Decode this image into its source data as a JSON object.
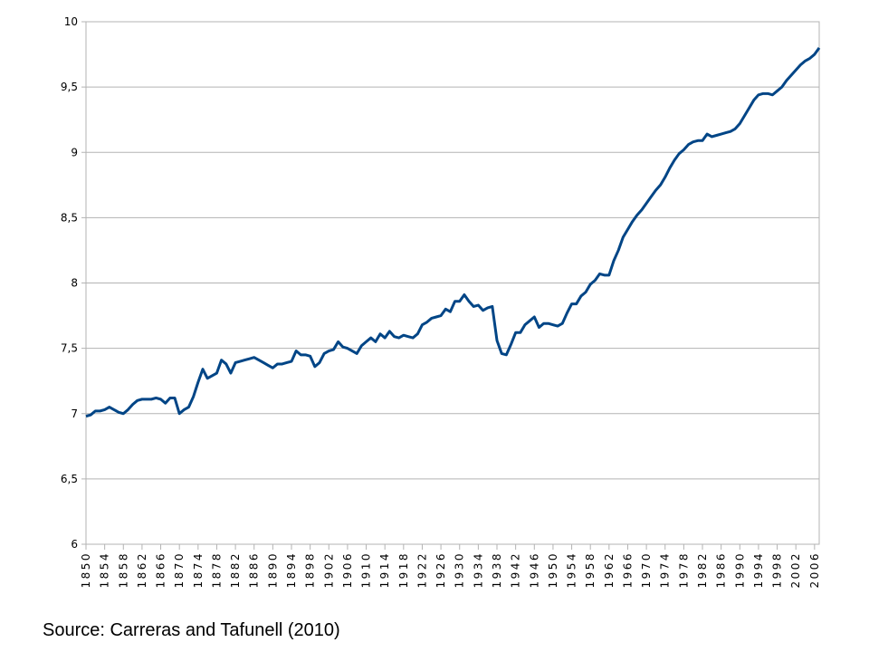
{
  "chart_data": {
    "type": "line",
    "annotation": "Source: Carreras and Tafunell (2010)",
    "x": [
      1850,
      1851,
      1852,
      1853,
      1854,
      1855,
      1856,
      1857,
      1858,
      1859,
      1860,
      1861,
      1862,
      1863,
      1864,
      1865,
      1866,
      1867,
      1868,
      1869,
      1870,
      1871,
      1872,
      1873,
      1874,
      1875,
      1876,
      1877,
      1878,
      1879,
      1880,
      1881,
      1882,
      1883,
      1884,
      1885,
      1886,
      1887,
      1888,
      1889,
      1890,
      1891,
      1892,
      1893,
      1894,
      1895,
      1896,
      1897,
      1898,
      1899,
      1900,
      1901,
      1902,
      1903,
      1904,
      1905,
      1906,
      1907,
      1908,
      1909,
      1910,
      1911,
      1912,
      1913,
      1914,
      1915,
      1916,
      1917,
      1918,
      1919,
      1920,
      1921,
      1922,
      1923,
      1924,
      1925,
      1926,
      1927,
      1928,
      1929,
      1930,
      1931,
      1932,
      1933,
      1934,
      1935,
      1936,
      1937,
      1938,
      1939,
      1940,
      1941,
      1942,
      1943,
      1944,
      1945,
      1946,
      1947,
      1948,
      1949,
      1950,
      1951,
      1952,
      1953,
      1954,
      1955,
      1956,
      1957,
      1958,
      1959,
      1960,
      1961,
      1962,
      1963,
      1964,
      1965,
      1966,
      1967,
      1968,
      1969,
      1970,
      1971,
      1972,
      1973,
      1974,
      1975,
      1976,
      1977,
      1978,
      1979,
      1980,
      1981,
      1982,
      1983,
      1984,
      1985,
      1986,
      1987,
      1988,
      1989,
      1990,
      1991,
      1992,
      1993,
      1994,
      1995,
      1996,
      1997,
      1998,
      1999,
      2000,
      2001,
      2002,
      2003,
      2004,
      2005,
      2006,
      2007
    ],
    "series": [
      {
        "color": "#004586",
        "values": [
          6.98,
          6.99,
          7.02,
          7.02,
          7.03,
          7.05,
          7.03,
          7.01,
          7.0,
          7.03,
          7.07,
          7.1,
          7.11,
          7.11,
          7.11,
          7.12,
          7.11,
          7.08,
          7.12,
          7.12,
          7.0,
          7.03,
          7.05,
          7.13,
          7.24,
          7.34,
          7.27,
          7.29,
          7.31,
          7.41,
          7.38,
          7.31,
          7.39,
          7.4,
          7.41,
          7.42,
          7.43,
          7.41,
          7.39,
          7.37,
          7.35,
          7.38,
          7.38,
          7.39,
          7.4,
          7.48,
          7.45,
          7.45,
          7.44,
          7.36,
          7.39,
          7.46,
          7.48,
          7.49,
          7.55,
          7.51,
          7.5,
          7.48,
          7.46,
          7.52,
          7.55,
          7.58,
          7.55,
          7.61,
          7.58,
          7.63,
          7.59,
          7.58,
          7.6,
          7.59,
          7.58,
          7.61,
          7.68,
          7.7,
          7.73,
          7.74,
          7.75,
          7.8,
          7.78,
          7.86,
          7.86,
          7.91,
          7.86,
          7.82,
          7.83,
          7.79,
          7.81,
          7.82,
          7.56,
          7.46,
          7.45,
          7.53,
          7.62,
          7.62,
          7.68,
          7.71,
          7.74,
          7.66,
          7.69,
          7.69,
          7.68,
          7.67,
          7.69,
          7.77,
          7.84,
          7.84,
          7.9,
          7.93,
          7.99,
          8.02,
          8.07,
          8.06,
          8.06,
          8.17,
          8.25,
          8.35,
          8.41,
          8.47,
          8.52,
          8.56,
          8.61,
          8.66,
          8.71,
          8.75,
          8.81,
          8.88,
          8.94,
          8.99,
          9.02,
          9.06,
          9.08,
          9.09,
          9.09,
          9.14,
          9.12,
          9.13,
          9.14,
          9.15,
          9.16,
          9.18,
          9.22,
          9.28,
          9.34,
          9.4,
          9.44,
          9.45,
          9.45,
          9.44,
          9.47,
          9.5,
          9.55,
          9.59,
          9.63,
          9.67,
          9.7,
          9.72,
          9.75,
          9.8
        ]
      }
    ],
    "xlim": [
      1850,
      2007
    ],
    "xticks": [
      1850,
      1854,
      1858,
      1862,
      1866,
      1870,
      1874,
      1878,
      1882,
      1886,
      1890,
      1894,
      1898,
      1902,
      1906,
      1910,
      1914,
      1918,
      1922,
      1926,
      1930,
      1934,
      1938,
      1942,
      1946,
      1950,
      1954,
      1958,
      1962,
      1966,
      1970,
      1974,
      1978,
      1982,
      1986,
      1990,
      1994,
      1998,
      2002,
      2006
    ],
    "ylim": [
      6,
      10
    ],
    "yticks": [
      6,
      {
        "value": 6.5,
        "label": "6,5"
      },
      7,
      {
        "value": 7.5,
        "label": "7,5"
      },
      8,
      {
        "value": 8.5,
        "label": "8,5"
      },
      9,
      {
        "value": 9.5,
        "label": "9,5"
      },
      10
    ],
    "grid": true
  }
}
